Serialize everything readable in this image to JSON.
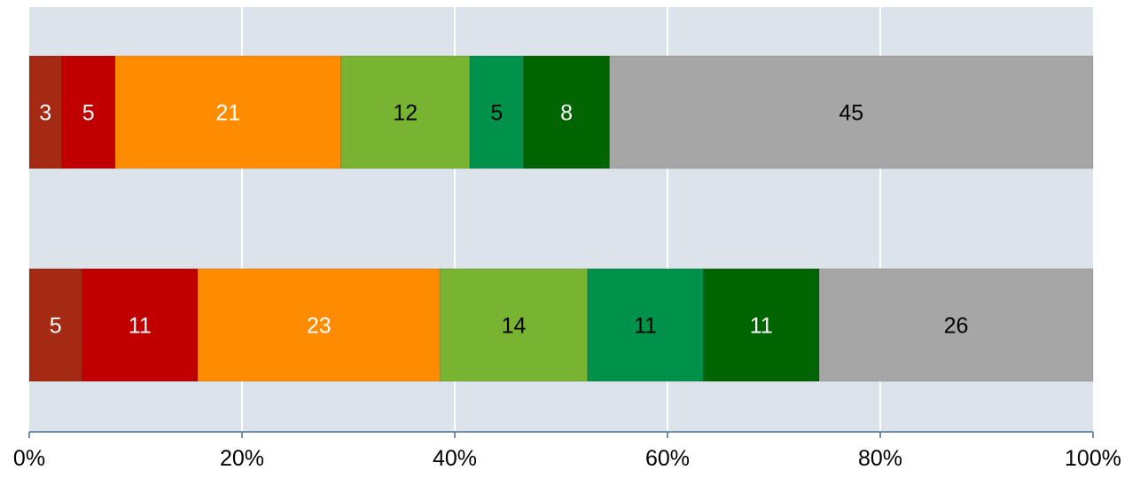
{
  "chart_data": {
    "type": "bar",
    "orientation": "horizontal",
    "stacked": "percent",
    "xlim": [
      0,
      100
    ],
    "x_ticks": [
      0,
      20,
      40,
      60,
      80,
      100
    ],
    "x_tick_labels": [
      "0%",
      "20%",
      "40%",
      "60%",
      "80%",
      "100%"
    ],
    "grid": true,
    "plot_background": "#dce3ea",
    "series_colors": [
      "#a52a14",
      "#c00000",
      "#ff8c00",
      "#78b432",
      "#00914b",
      "#006400",
      "#a6a6a6"
    ],
    "label_colors": [
      "#ffffff",
      "#ffffff",
      "#ffffff",
      "#000000",
      "#000000",
      "#ffffff",
      "#000000"
    ],
    "bars": [
      {
        "values": [
          3,
          5,
          21,
          12,
          5,
          8,
          45
        ]
      },
      {
        "values": [
          5,
          11,
          23,
          14,
          11,
          11,
          26
        ]
      }
    ]
  }
}
